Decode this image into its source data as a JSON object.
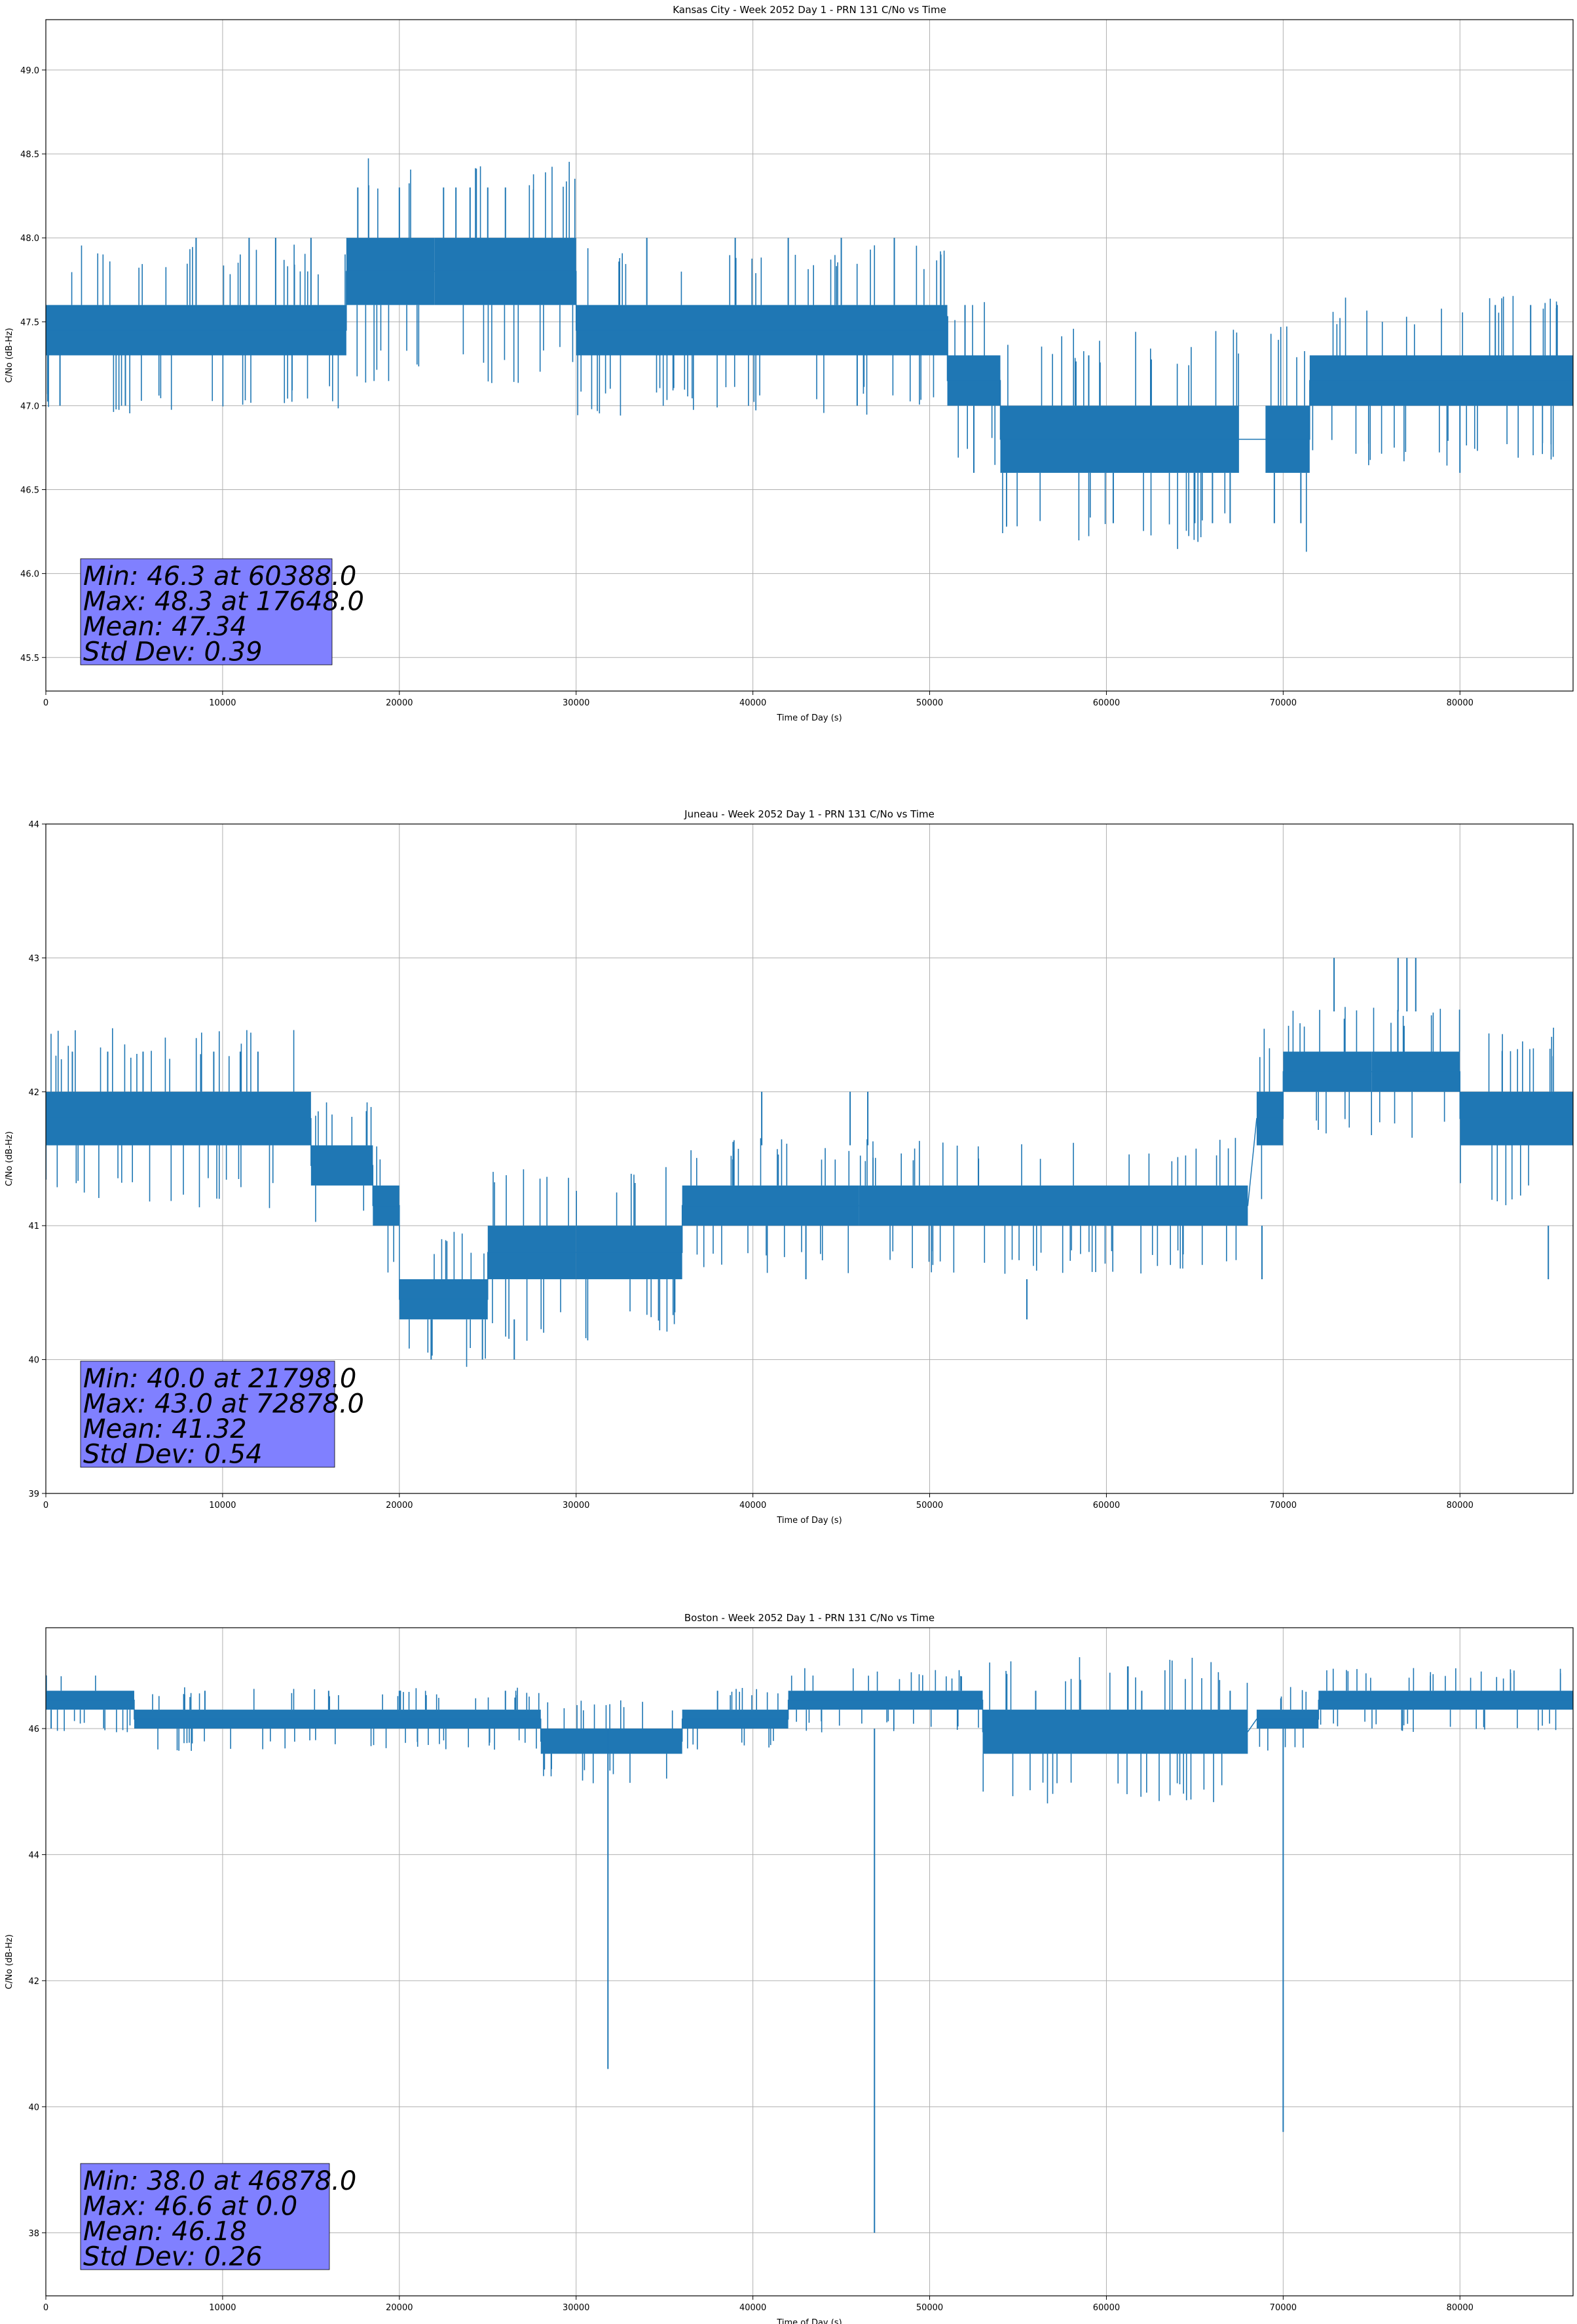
{
  "chart_data": [
    {
      "type": "line",
      "title": "Kansas City - Week 2052 Day 1 - PRN 131 C/No vs Time",
      "xlabel": "Time of Day (s)",
      "ylabel": "C/No (dB-Hz)",
      "xlim": [
        0,
        86400
      ],
      "ylim": [
        45.3,
        49.3
      ],
      "xticks": [
        0,
        10000,
        20000,
        30000,
        40000,
        50000,
        60000,
        70000,
        80000
      ],
      "yticks": [
        "45.5",
        "46.0",
        "46.5",
        "47.0",
        "47.5",
        "48.0",
        "48.5",
        "49.0"
      ],
      "grid": true,
      "series_color": "#1f77b4",
      "bands": [
        {
          "x": [
            0,
            17000
          ],
          "y": [
            47.3,
            47.6
          ]
        },
        {
          "x": [
            17000,
            22000
          ],
          "y": [
            47.6,
            48.0
          ]
        },
        {
          "x": [
            22000,
            30000
          ],
          "y": [
            47.6,
            48.0
          ]
        },
        {
          "x": [
            30000,
            51000
          ],
          "y": [
            47.3,
            47.6
          ]
        },
        {
          "x": [
            51000,
            54000
          ],
          "y": [
            47.0,
            47.3
          ]
        },
        {
          "x": [
            54000,
            67500
          ],
          "y": [
            46.6,
            47.0
          ]
        },
        {
          "x": [
            69000,
            71500
          ],
          "y": [
            46.6,
            47.0
          ]
        },
        {
          "x": [
            71500,
            86400
          ],
          "y": [
            47.0,
            47.3
          ]
        }
      ],
      "spikes": [
        {
          "x": 8500,
          "y": [
            47.6,
            48.0
          ]
        },
        {
          "x": 11500,
          "y": [
            47.6,
            48.0
          ]
        },
        {
          "x": 13000,
          "y": [
            47.6,
            48.0
          ]
        },
        {
          "x": 15000,
          "y": [
            47.6,
            48.0
          ]
        },
        {
          "x": 4500,
          "y": [
            47.0,
            47.3
          ]
        },
        {
          "x": 800,
          "y": [
            47.0,
            47.3
          ]
        },
        {
          "x": 17648,
          "y": [
            48.0,
            48.3
          ]
        },
        {
          "x": 20000,
          "y": [
            48.0,
            48.3
          ]
        },
        {
          "x": 22500,
          "y": [
            48.0,
            48.3
          ]
        },
        {
          "x": 23200,
          "y": [
            48.0,
            48.3
          ]
        },
        {
          "x": 24000,
          "y": [
            48.0,
            48.3
          ]
        },
        {
          "x": 25000,
          "y": [
            48.0,
            48.3
          ]
        },
        {
          "x": 26000,
          "y": [
            48.0,
            48.3
          ]
        },
        {
          "x": 34000,
          "y": [
            47.6,
            48.0
          ]
        },
        {
          "x": 39000,
          "y": [
            47.6,
            48.0
          ]
        },
        {
          "x": 42000,
          "y": [
            47.6,
            48.0
          ]
        },
        {
          "x": 45000,
          "y": [
            47.6,
            48.0
          ]
        },
        {
          "x": 48000,
          "y": [
            47.6,
            48.0
          ]
        },
        {
          "x": 45900,
          "y": [
            47.0,
            47.3
          ]
        },
        {
          "x": 52000,
          "y": [
            47.3,
            47.6
          ]
        },
        {
          "x": 52500,
          "y": [
            46.6,
            47.0
          ]
        },
        {
          "x": 59000,
          "y": [
            47.0,
            47.3
          ]
        },
        {
          "x": 60388,
          "y": [
            46.3,
            46.6
          ]
        },
        {
          "x": 65000,
          "y": [
            46.3,
            46.6
          ]
        },
        {
          "x": 66000,
          "y": [
            46.3,
            46.6
          ]
        },
        {
          "x": 67000,
          "y": [
            46.3,
            46.6
          ]
        },
        {
          "x": 69500,
          "y": [
            46.3,
            46.6
          ]
        },
        {
          "x": 71000,
          "y": [
            46.3,
            46.6
          ]
        },
        {
          "x": 80000,
          "y": [
            46.6,
            47.0
          ]
        },
        {
          "x": 82000,
          "y": [
            47.3,
            47.6
          ]
        },
        {
          "x": 84000,
          "y": [
            47.3,
            47.6
          ]
        },
        {
          "x": 85500,
          "y": [
            47.3,
            47.6
          ]
        }
      ],
      "stats": [
        "Min: 46.3 at 60388.0",
        "Max: 48.3 at 17648.0",
        "Mean: 47.34",
        "Std Dev: 0.39"
      ]
    },
    {
      "type": "line",
      "title": "Juneau - Week 2052 Day 1 - PRN 131 C/No vs Time",
      "xlabel": "Time of Day (s)",
      "ylabel": "C/No (dB-Hz)",
      "xlim": [
        0,
        86400
      ],
      "ylim": [
        39,
        44
      ],
      "xticks": [
        0,
        10000,
        20000,
        30000,
        40000,
        50000,
        60000,
        70000,
        80000
      ],
      "yticks": [
        "39",
        "40",
        "41",
        "42",
        "43",
        "44"
      ],
      "grid": true,
      "series_color": "#1f77b4",
      "bands": [
        {
          "x": [
            0,
            15000
          ],
          "y": [
            41.6,
            42.0
          ]
        },
        {
          "x": [
            15000,
            18500
          ],
          "y": [
            41.3,
            41.6
          ]
        },
        {
          "x": [
            18500,
            20000
          ],
          "y": [
            41.0,
            41.3
          ]
        },
        {
          "x": [
            20000,
            25000
          ],
          "y": [
            40.3,
            40.6
          ]
        },
        {
          "x": [
            25000,
            30000
          ],
          "y": [
            40.6,
            41.0
          ]
        },
        {
          "x": [
            30000,
            36000
          ],
          "y": [
            40.6,
            41.0
          ]
        },
        {
          "x": [
            36000,
            46000
          ],
          "y": [
            41.0,
            41.3
          ]
        },
        {
          "x": [
            46000,
            68000
          ],
          "y": [
            41.0,
            41.3
          ]
        },
        {
          "x": [
            68500,
            70000
          ],
          "y": [
            41.6,
            42.0
          ]
        },
        {
          "x": [
            70000,
            75000
          ],
          "y": [
            42.0,
            42.3
          ]
        },
        {
          "x": [
            75000,
            80000
          ],
          "y": [
            42.0,
            42.3
          ]
        },
        {
          "x": [
            80000,
            86400
          ],
          "y": [
            41.6,
            42.0
          ]
        }
      ],
      "spikes": [
        {
          "x": 1500,
          "y": [
            42.0,
            42.3
          ]
        },
        {
          "x": 3500,
          "y": [
            42.0,
            42.3
          ]
        },
        {
          "x": 5500,
          "y": [
            42.0,
            42.3
          ]
        },
        {
          "x": 9500,
          "y": [
            42.0,
            42.3
          ]
        },
        {
          "x": 11000,
          "y": [
            42.0,
            42.3
          ]
        },
        {
          "x": 12000,
          "y": [
            42.0,
            42.3
          ]
        },
        {
          "x": 21798,
          "y": [
            40.0,
            40.3
          ]
        },
        {
          "x": 24700,
          "y": [
            40.0,
            40.3
          ]
        },
        {
          "x": 26500,
          "y": [
            40.0,
            40.3
          ]
        },
        {
          "x": 40500,
          "y": [
            41.6,
            42.0
          ]
        },
        {
          "x": 45500,
          "y": [
            41.6,
            42.0
          ]
        },
        {
          "x": 46500,
          "y": [
            41.6,
            42.0
          ]
        },
        {
          "x": 43000,
          "y": [
            40.6,
            41.0
          ]
        },
        {
          "x": 55500,
          "y": [
            40.3,
            40.6
          ]
        },
        {
          "x": 68800,
          "y": [
            40.6,
            41.0
          ]
        },
        {
          "x": 72878,
          "y": [
            42.6,
            43.0
          ]
        },
        {
          "x": 76500,
          "y": [
            42.6,
            43.0
          ]
        },
        {
          "x": 77000,
          "y": [
            42.6,
            43.0
          ]
        },
        {
          "x": 77500,
          "y": [
            42.6,
            43.0
          ]
        },
        {
          "x": 85000,
          "y": [
            40.6,
            41.0
          ]
        }
      ],
      "stats": [
        "Min: 40.0 at 21798.0",
        "Max: 43.0 at 72878.0",
        "Mean: 41.32",
        "Std Dev: 0.54"
      ]
    },
    {
      "type": "line",
      "title": "Boston - Week 2052 Day 1 - PRN 131 C/No vs Time",
      "xlabel": "Time of Day (s)",
      "ylabel": "C/No (dB-Hz)",
      "xlim": [
        0,
        86400
      ],
      "ylim": [
        37,
        47.6
      ],
      "xticks": [
        0,
        10000,
        20000,
        30000,
        40000,
        50000,
        60000,
        70000,
        80000
      ],
      "yticks": [
        "38",
        "40",
        "42",
        "44",
        "46"
      ],
      "grid": true,
      "series_color": "#1f77b4",
      "bands": [
        {
          "x": [
            0,
            5000
          ],
          "y": [
            46.3,
            46.6
          ]
        },
        {
          "x": [
            5000,
            28000
          ],
          "y": [
            46.0,
            46.3
          ]
        },
        {
          "x": [
            28000,
            36000
          ],
          "y": [
            45.6,
            46.0
          ]
        },
        {
          "x": [
            36000,
            42000
          ],
          "y": [
            46.0,
            46.3
          ]
        },
        {
          "x": [
            42000,
            53000
          ],
          "y": [
            46.3,
            46.6
          ]
        },
        {
          "x": [
            53000,
            68000
          ],
          "y": [
            45.6,
            46.3
          ]
        },
        {
          "x": [
            68500,
            72000
          ],
          "y": [
            46.0,
            46.3
          ]
        },
        {
          "x": [
            72000,
            86400
          ],
          "y": [
            46.3,
            46.6
          ]
        }
      ],
      "spikes": [
        {
          "x": 31800,
          "y": [
            40.6,
            46.0
          ]
        },
        {
          "x": 46878,
          "y": [
            38.0,
            46.0
          ]
        },
        {
          "x": 70000,
          "y": [
            39.6,
            46.0
          ]
        },
        {
          "x": 9000,
          "y": [
            46.3,
            46.6
          ]
        },
        {
          "x": 16000,
          "y": [
            46.3,
            46.6
          ]
        },
        {
          "x": 20000,
          "y": [
            46.3,
            46.6
          ]
        },
        {
          "x": 26000,
          "y": [
            46.3,
            46.6
          ]
        },
        {
          "x": 38000,
          "y": [
            46.3,
            46.6
          ]
        },
        {
          "x": 56000,
          "y": [
            46.3,
            46.6
          ]
        },
        {
          "x": 62000,
          "y": [
            46.3,
            46.6
          ]
        },
        {
          "x": 67000,
          "y": [
            46.3,
            46.6
          ]
        },
        {
          "x": 300,
          "y": [
            46.0,
            46.3
          ]
        }
      ],
      "stats": [
        "Min: 38.0 at 46878.0",
        "Max: 46.6 at 0.0",
        "Mean: 46.18",
        "Std Dev: 0.26"
      ]
    }
  ]
}
